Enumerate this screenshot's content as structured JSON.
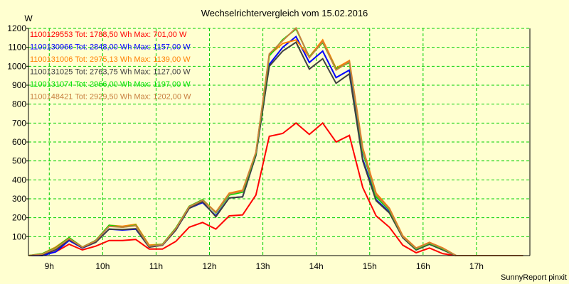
{
  "chart_data": {
    "type": "line",
    "title": "Wechselrichtervergleich vom 15.02.2016",
    "ylabel": "W",
    "xlabel": "",
    "footer": "SunnyReport pinxit",
    "ylim": [
      0,
      1200
    ],
    "xlim": [
      8.61,
      18.0
    ],
    "yticks": [
      100,
      200,
      300,
      400,
      500,
      600,
      700,
      800,
      900,
      1000,
      1100,
      1200
    ],
    "ytick_labels": [
      "100",
      "200",
      "300",
      "400",
      "500",
      "600",
      "700",
      "800",
      "900",
      "1000",
      "1100",
      "1200"
    ],
    "xticks": [
      9,
      10,
      11,
      12,
      13,
      14,
      15,
      16,
      17
    ],
    "xtick_labels": [
      "9h",
      "10h",
      "11h",
      "12h",
      "13h",
      "14h",
      "15h",
      "16h",
      "17h"
    ],
    "grid": true,
    "legend_placement": "top-left",
    "x_start": 8.62,
    "x_step": 0.25,
    "series": [
      {
        "name": "1100129553",
        "legend": "1100129553 Tot: 1788,50 Wh Max: 701,00 W",
        "color": "#ff0000",
        "values": [
          0,
          5,
          20,
          60,
          30,
          50,
          80,
          80,
          85,
          35,
          35,
          75,
          150,
          175,
          140,
          210,
          215,
          320,
          630,
          645,
          700,
          640,
          700,
          600,
          635,
          360,
          210,
          150,
          55,
          15,
          40,
          10,
          0,
          0,
          0,
          0,
          0,
          0
        ]
      },
      {
        "name": "1100130966",
        "legend": "1100130966 Tot: 2848,00 Wh Max: 1157,00 W",
        "color": "#0000ff",
        "values": [
          0,
          0,
          20,
          80,
          40,
          70,
          140,
          135,
          140,
          45,
          55,
          135,
          250,
          280,
          210,
          305,
          310,
          530,
          1010,
          1100,
          1157,
          1020,
          1080,
          940,
          980,
          510,
          295,
          230,
          95,
          30,
          60,
          30,
          0,
          0,
          0,
          0,
          0,
          0
        ]
      },
      {
        "name": "1100131006",
        "legend": "1100131006 Tot: 2975,13 Wh Max: 1139,00 W",
        "color": "#ff8000",
        "values": [
          0,
          10,
          45,
          95,
          45,
          80,
          160,
          155,
          165,
          55,
          60,
          145,
          260,
          295,
          230,
          330,
          345,
          545,
          1060,
          1120,
          1139,
          1050,
          1139,
          990,
          1030,
          570,
          330,
          250,
          105,
          40,
          70,
          40,
          0,
          0,
          0,
          0,
          0,
          0
        ]
      },
      {
        "name": "1100131025",
        "legend": "1100131025 Tot: 2763,75 Wh Max: 1127,00 W",
        "color": "#404040",
        "values": [
          0,
          5,
          30,
          85,
          42,
          70,
          140,
          138,
          142,
          45,
          55,
          135,
          250,
          285,
          205,
          305,
          310,
          530,
          1000,
          1080,
          1127,
          985,
          1040,
          910,
          960,
          500,
          290,
          225,
          95,
          30,
          60,
          30,
          0,
          0,
          0,
          0,
          0,
          0
        ]
      },
      {
        "name": "1100131074",
        "legend": "1100131074 Tot: 2966,00 Wh Max: 1197,00 W",
        "color": "#00e000",
        "values": [
          0,
          10,
          40,
          95,
          45,
          80,
          160,
          150,
          160,
          50,
          60,
          145,
          260,
          295,
          225,
          320,
          335,
          540,
          1055,
          1140,
          1197,
          1050,
          1125,
          985,
          1020,
          550,
          310,
          240,
          100,
          35,
          65,
          35,
          0,
          0,
          0,
          0,
          0,
          0
        ]
      },
      {
        "name": "1100148421",
        "legend": "1100148421 Tot: 2929,50 Wh Max: 1202,00 W",
        "color": "#c88040",
        "values": [
          0,
          8,
          38,
          90,
          45,
          78,
          155,
          150,
          158,
          50,
          58,
          142,
          258,
          292,
          228,
          325,
          340,
          545,
          1065,
          1135,
          1202,
          1045,
          1130,
          980,
          1025,
          560,
          320,
          245,
          100,
          38,
          68,
          38,
          0,
          0,
          0,
          0,
          0,
          0
        ]
      }
    ]
  }
}
